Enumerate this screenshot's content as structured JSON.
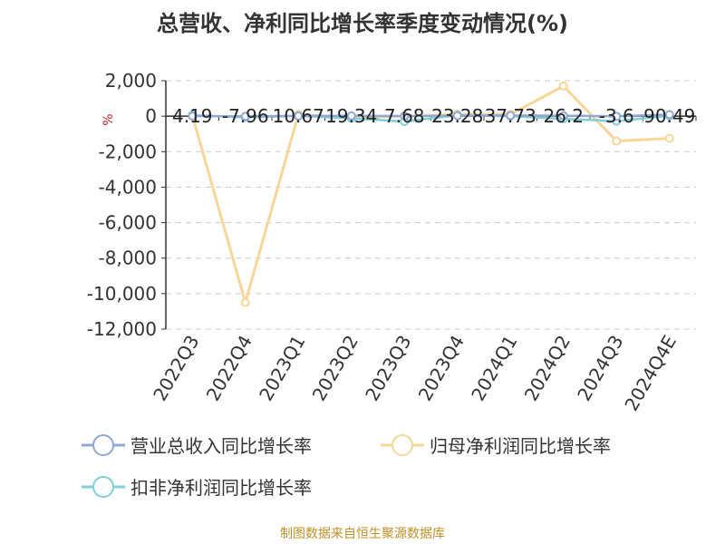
{
  "title": "总营收、净利同比增长率季度变动情况(%)",
  "source": "制图数据来自恒生聚源数据库",
  "chart_data": {
    "type": "line",
    "title": "总营收、净利同比增长率季度变动情况(%)",
    "ylabel": "%",
    "ylim": [
      -12000,
      2000
    ],
    "yticks": [
      2000,
      0,
      -2000,
      -4000,
      -6000,
      -8000,
      -10000,
      -12000
    ],
    "ytick_labels": [
      "2,000",
      "0",
      "-2,000",
      "-4,000",
      "-6,000",
      "-8,000",
      "-10,000",
      "-12,000"
    ],
    "grid": true,
    "legend_position": "bottom",
    "categories": [
      "2022Q3",
      "2022Q4",
      "2023Q1",
      "2023Q2",
      "2023Q3",
      "2023Q4",
      "2024Q1",
      "2024Q2",
      "2024Q3",
      "2024Q4E"
    ],
    "series": [
      {
        "name": "营业总收入同比增长率",
        "color": "#8fa8d4",
        "values": [
          4.19,
          -7.96,
          10.67,
          19.34,
          7.68,
          23.28,
          37.73,
          26.2,
          -3.6,
          90.49
        ]
      },
      {
        "name": "归母净利润同比增长率",
        "color": "#f8d69a",
        "values": [
          50,
          -10500,
          100,
          -100,
          0,
          100,
          100,
          1700,
          -1400,
          -1250
        ]
      },
      {
        "name": "扣非净利润同比增长率",
        "color": "#7fd0d8",
        "values": [
          50,
          -60,
          20,
          -120,
          -300,
          50,
          0,
          -150,
          -280,
          20
        ]
      }
    ],
    "data_labels": [
      "4.19",
      "-7.96",
      "10.67",
      "19.34",
      "7.68",
      "23.28",
      "37.73",
      "26.2",
      "-3.6",
      "90.49"
    ]
  }
}
